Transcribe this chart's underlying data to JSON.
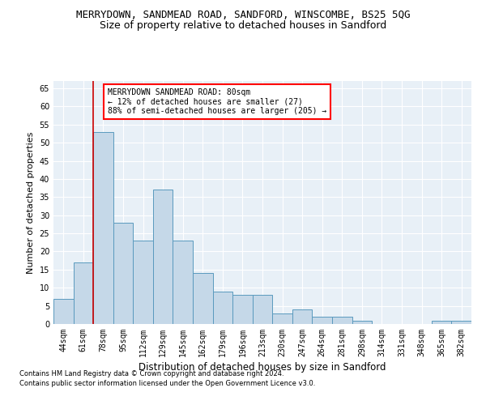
{
  "title": "MERRYDOWN, SANDMEAD ROAD, SANDFORD, WINSCOMBE, BS25 5QG",
  "subtitle": "Size of property relative to detached houses in Sandford",
  "xlabel": "Distribution of detached houses by size in Sandford",
  "ylabel": "Number of detached properties",
  "categories": [
    "44sqm",
    "61sqm",
    "78sqm",
    "95sqm",
    "112sqm",
    "129sqm",
    "145sqm",
    "162sqm",
    "179sqm",
    "196sqm",
    "213sqm",
    "230sqm",
    "247sqm",
    "264sqm",
    "281sqm",
    "298sqm",
    "314sqm",
    "331sqm",
    "348sqm",
    "365sqm",
    "382sqm"
  ],
  "values": [
    7,
    17,
    53,
    28,
    23,
    37,
    23,
    14,
    9,
    8,
    8,
    3,
    4,
    2,
    2,
    1,
    0,
    0,
    0,
    1,
    1
  ],
  "bar_color": "#c5d8e8",
  "bar_edge_color": "#5a9abe",
  "vline_color": "#cc0000",
  "annotation_title": "MERRYDOWN SANDMEAD ROAD: 80sqm",
  "annotation_line1": "← 12% of detached houses are smaller (27)",
  "annotation_line2": "88% of semi-detached houses are larger (205) →",
  "footer1": "Contains HM Land Registry data © Crown copyright and database right 2024.",
  "footer2": "Contains public sector information licensed under the Open Government Licence v3.0.",
  "ylim": [
    0,
    67
  ],
  "yticks": [
    0,
    5,
    10,
    15,
    20,
    25,
    30,
    35,
    40,
    45,
    50,
    55,
    60,
    65
  ],
  "bg_color": "#e8f0f7",
  "fig_bg_color": "#ffffff",
  "title_fontsize": 9,
  "subtitle_fontsize": 9,
  "tick_fontsize": 7,
  "ylabel_fontsize": 8,
  "xlabel_fontsize": 8.5,
  "annotation_fontsize": 7,
  "footer_fontsize": 6
}
